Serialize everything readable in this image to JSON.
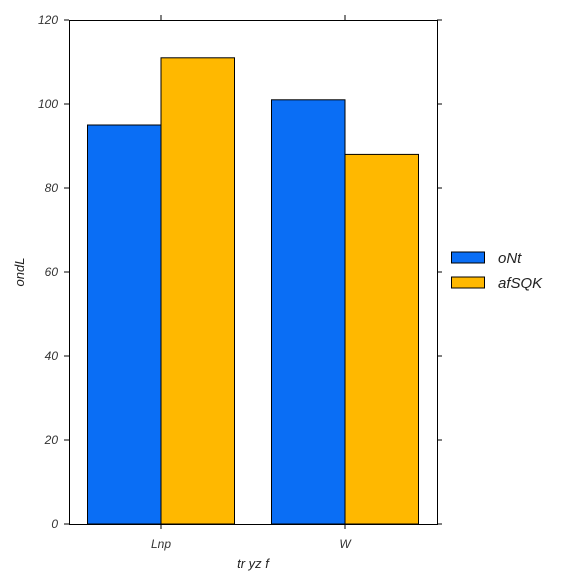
{
  "chart_data": {
    "type": "bar",
    "categories": [
      "Lnp",
      "W"
    ],
    "series": [
      {
        "name": "oNt",
        "values": [
          95,
          101
        ],
        "color": "#0a6ef5"
      },
      {
        "name": "afSQK",
        "values": [
          111,
          88
        ],
        "color": "#ffb800"
      }
    ],
    "xlabel": "tr  yz  f",
    "ylabel": "ondL",
    "ylim": [
      0,
      120
    ],
    "yticks": [
      0,
      20,
      40,
      60,
      80,
      100,
      120
    ],
    "grid": false,
    "legend_position": "right"
  }
}
